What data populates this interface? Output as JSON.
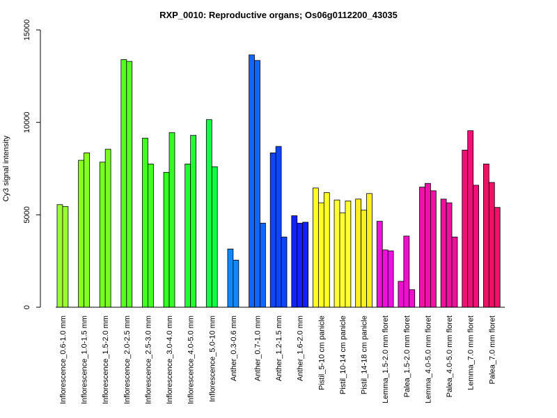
{
  "chart_data": {
    "type": "bar",
    "title": "RXP_0010: Reproductive organs; Os06g0112200_43035",
    "xlabel": "",
    "ylabel": "Cy3 signal intensity",
    "ylim": [
      0,
      15000
    ],
    "yticks": [
      "0",
      "5000",
      "10000",
      "15000"
    ],
    "grid": false,
    "legend": "none",
    "categories": [
      "Inflorescence_0.6-1.0 mm",
      "Inflorescence_1.0-1.5 mm",
      "Inflorescence_1.5-2.0 mm",
      "Inflorescence_2.0-2.5 mm",
      "Inflorescence_2.5-3.0 mm",
      "Inflorescence_3.0-4.0 mm",
      "Inflorescence_4.0-5.0 mm",
      "Inflorescence_5.0-10 mm",
      "Anther_0.3-0.6 mm",
      "Anther_0.7-1.0 mm",
      "Anther_1.2-1.5 mm",
      "Anther_1.6-2.0 mm",
      "Pistil_5-10 cm panicle",
      "Pistil_10-14 cm panicle",
      "Pistil_14-18 cm panicle",
      "Lemma_1.5-2.0 mm floret",
      "Palea_1.5-2.0 mm floret",
      "Lemma_4.0-5.0 mm floret",
      "Palea_4.0-5.0 mm floret",
      "Lemma_7.0 mm floret",
      "Palea_7.0 mm floret"
    ],
    "groups": [
      {
        "color": "#99FF33",
        "values": [
          5550,
          5450
        ]
      },
      {
        "color": "#88FF22",
        "values": [
          7950,
          8350
        ]
      },
      {
        "color": "#77FF22",
        "values": [
          7850,
          8550
        ]
      },
      {
        "color": "#55FF22",
        "values": [
          13400,
          13300
        ]
      },
      {
        "color": "#44FF22",
        "values": [
          9150,
          7750
        ]
      },
      {
        "color": "#33FF22",
        "values": [
          7300,
          9450
        ]
      },
      {
        "color": "#22FF33",
        "values": [
          7750,
          9300
        ]
      },
      {
        "color": "#11FF44",
        "values": [
          10150,
          7600
        ]
      },
      {
        "color": "#1188FF",
        "values": [
          3150,
          2550
        ]
      },
      {
        "color": "#1166FF",
        "values": [
          13650,
          13350,
          4550
        ]
      },
      {
        "color": "#1144FF",
        "values": [
          8350,
          8700,
          3800
        ]
      },
      {
        "color": "#1122FF",
        "values": [
          4950,
          4550,
          4600
        ]
      },
      {
        "color": "#FFFF22",
        "values": [
          6450,
          5650,
          6200
        ]
      },
      {
        "color": "#FFFF33",
        "values": [
          5800,
          5100,
          5750
        ]
      },
      {
        "color": "#FFEE22",
        "values": [
          5850,
          5250,
          6150
        ]
      },
      {
        "color": "#EE11DD",
        "values": [
          4650,
          3100,
          3050
        ]
      },
      {
        "color": "#EE11CC",
        "values": [
          1400,
          3850,
          950
        ]
      },
      {
        "color": "#EE11AA",
        "values": [
          6500,
          6700,
          6300
        ]
      },
      {
        "color": "#EE1199",
        "values": [
          5850,
          5650,
          3800
        ]
      },
      {
        "color": "#EE1177",
        "values": [
          8500,
          9550,
          6600
        ]
      },
      {
        "color": "#EE1166",
        "values": [
          7750,
          6750,
          5400
        ]
      }
    ]
  }
}
